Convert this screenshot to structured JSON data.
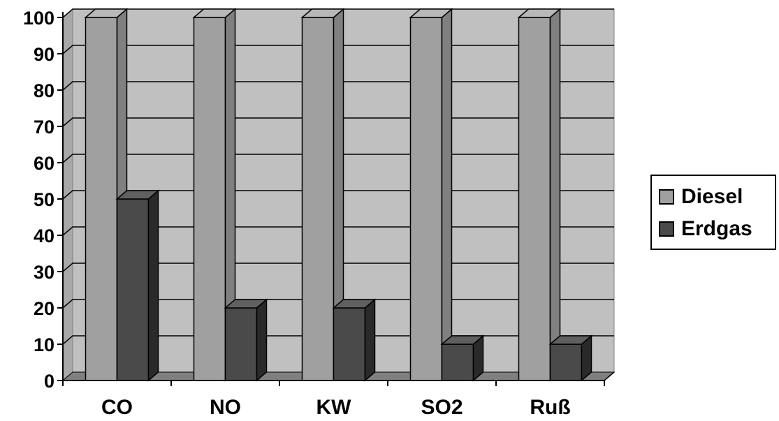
{
  "chart_data": {
    "type": "bar",
    "categories": [
      "CO",
      "NO",
      "KW",
      "SO2",
      "Ruß"
    ],
    "series": [
      {
        "name": "Diesel",
        "values": [
          100,
          100,
          100,
          100,
          100
        ],
        "color": "#a0a0a0"
      },
      {
        "name": "Erdgas",
        "values": [
          50,
          20,
          20,
          10,
          10
        ],
        "color": "#4a4a4a"
      }
    ],
    "ylim": [
      0,
      100
    ],
    "yticks": [
      "0",
      "10",
      "20",
      "30",
      "40",
      "50",
      "60",
      "70",
      "80",
      "90",
      "100"
    ],
    "grid": true,
    "legend": "right",
    "colors": {
      "wall": "#c0c0c0",
      "floor": "#808080"
    }
  }
}
